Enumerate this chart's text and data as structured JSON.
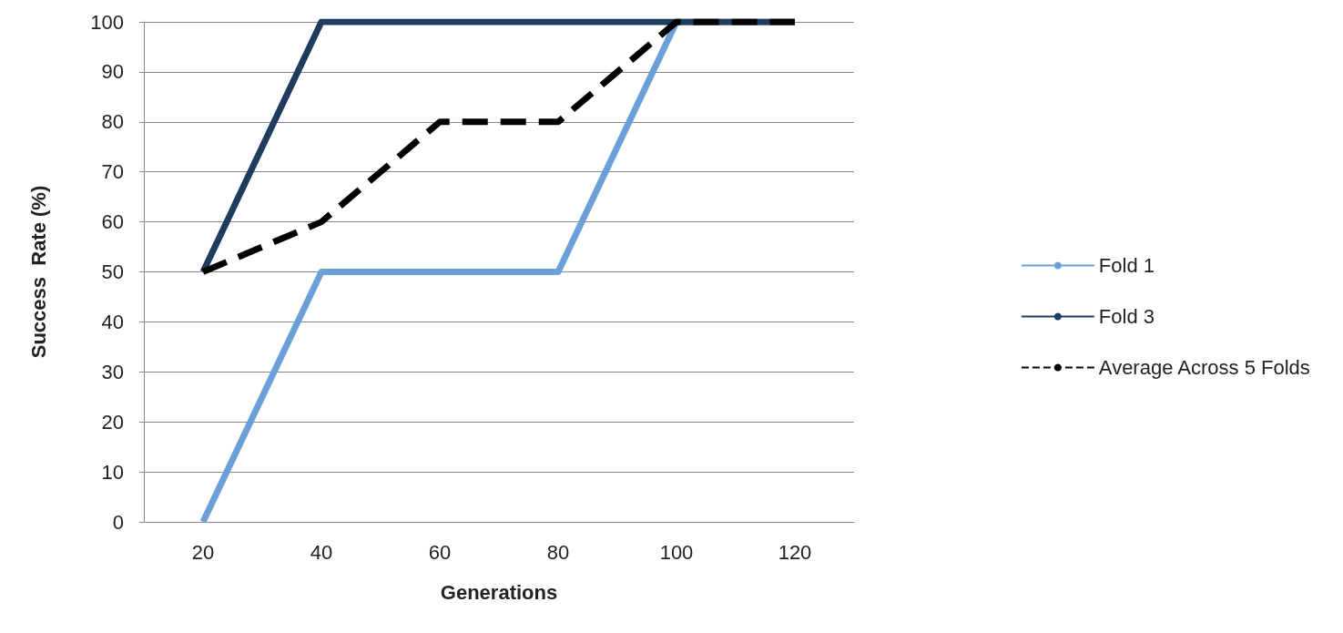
{
  "chart_data": {
    "type": "line",
    "xlabel": "Generations",
    "ylabel": "Success  Rate (%)",
    "categories": [
      "20",
      "40",
      "60",
      "80",
      "100",
      "120"
    ],
    "ylim": [
      0,
      100
    ],
    "yticks": [
      0,
      10,
      20,
      30,
      40,
      50,
      60,
      70,
      80,
      90,
      100
    ],
    "grid": "y",
    "legend": "right",
    "marker": "none",
    "series": [
      {
        "name": "Fold 1",
        "color": "#6a9fd8",
        "values": [
          0,
          50,
          50,
          50,
          100,
          100
        ],
        "line_style": "solid"
      },
      {
        "name": "Fold 3",
        "color": "#1f3b5e",
        "values": [
          50,
          100,
          100,
          100,
          100,
          100
        ],
        "line_style": "solid"
      },
      {
        "name": "Average Across 5 Folds",
        "color": "#000000",
        "values": [
          50,
          60,
          80,
          80,
          100,
          100
        ],
        "line_style": "dashed"
      }
    ]
  }
}
